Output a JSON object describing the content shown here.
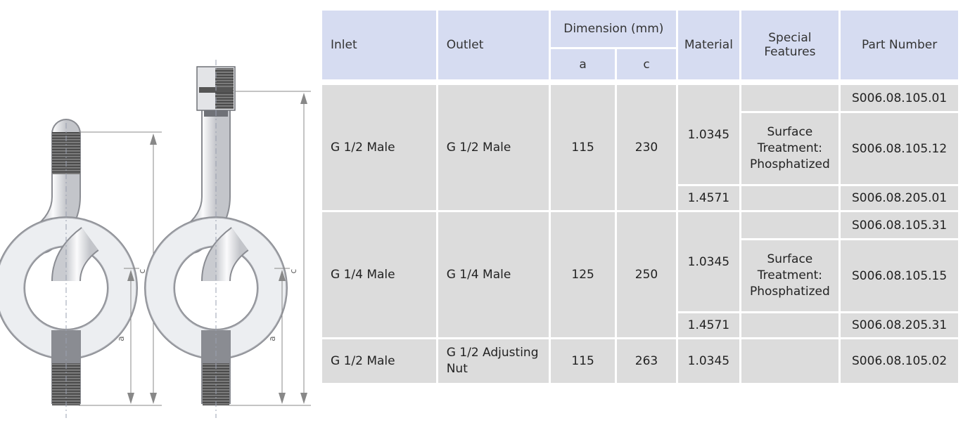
{
  "drawing": {
    "dimension_labels": {
      "c_left": "c",
      "c_right": "c",
      "a_left": "a",
      "a_right": "a"
    }
  },
  "table": {
    "headers": {
      "inlet": "Inlet",
      "outlet": "Outlet",
      "dimension": "Dimension (mm)",
      "dim_a": "a",
      "dim_c": "c",
      "material": "Material",
      "special_features": "Special Features",
      "part_number": "Part Number"
    },
    "groups": [
      {
        "inlet": "G 1/2 Male",
        "outlet": "G 1/2 Male",
        "a": "115",
        "c": "230",
        "material_1": "1.0345",
        "feature": "Surface Treatment: Phosphatized",
        "material_2": "1.4571",
        "parts": [
          "S006.08.105.01",
          "S006.08.105.12",
          "S006.08.205.01"
        ]
      },
      {
        "inlet": "G 1/4 Male",
        "outlet": "G 1/4 Male",
        "a": "125",
        "c": "250",
        "material_1": "1.0345",
        "feature": "Surface Treatment: Phosphatized",
        "material_2": "1.4571",
        "parts": [
          "S006.08.105.31",
          "S006.08.105.15",
          "S006.08.205.31"
        ]
      },
      {
        "inlet": "G 1/2 Male",
        "outlet": "G 1/2 Adjusting Nut",
        "a": "115",
        "c": "263",
        "material_1": "1.0345",
        "feature": "",
        "parts": [
          "S006.08.105.02"
        ]
      }
    ]
  }
}
